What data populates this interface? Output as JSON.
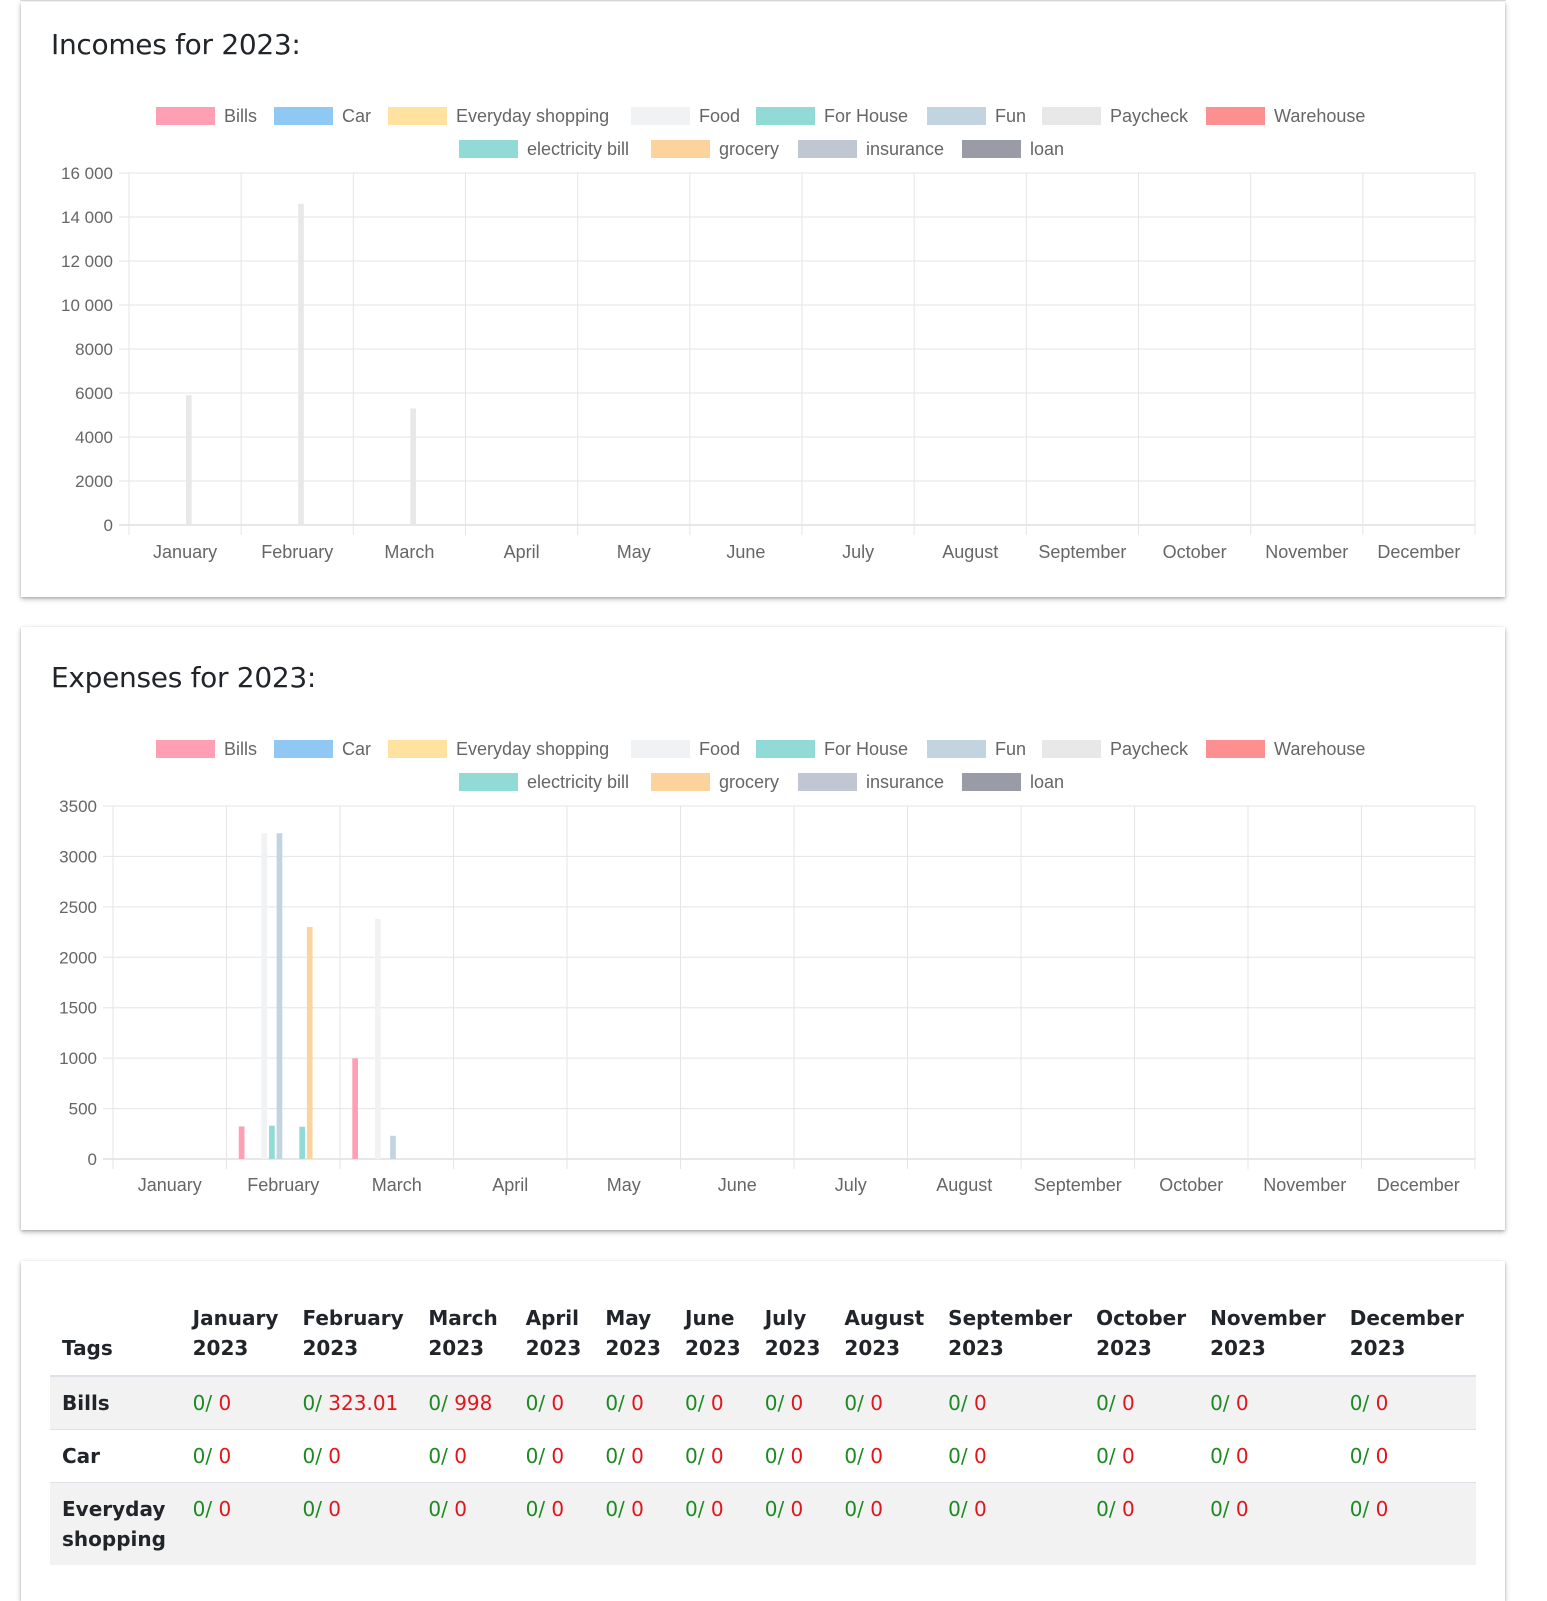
{
  "incomes_card": {
    "title": "Incomes for 2023:"
  },
  "expenses_card": {
    "title": "Expenses for 2023:"
  },
  "legend": [
    {
      "name": "Bills",
      "color": "#ff9fb3"
    },
    {
      "name": "Car",
      "color": "#8ec8f3"
    },
    {
      "name": "Everyday shopping",
      "color": "#ffe2a0"
    },
    {
      "name": "Food",
      "color": "#f1f2f3"
    },
    {
      "name": "For House",
      "color": "#91dad6"
    },
    {
      "name": "Fun",
      "color": "#c2d4e0"
    },
    {
      "name": "Paycheck",
      "color": "#e8e8e8"
    },
    {
      "name": "Warehouse",
      "color": "#fc8f8f"
    },
    {
      "name": "electricity bill",
      "color": "#91dad6"
    },
    {
      "name": "grocery",
      "color": "#fcd39d"
    },
    {
      "name": "insurance",
      "color": "#c0c6d2"
    },
    {
      "name": "loan",
      "color": "#999ca6"
    }
  ],
  "chart_data": [
    {
      "type": "bar",
      "title": "Incomes for 2023:",
      "categories": [
        "January",
        "February",
        "March",
        "April",
        "May",
        "June",
        "July",
        "August",
        "September",
        "October",
        "November",
        "December"
      ],
      "ylim": [
        0,
        16000
      ],
      "yticks": [
        0,
        2000,
        4000,
        6000,
        8000,
        10000,
        12000,
        14000,
        16000
      ],
      "ytick_labels": [
        "0",
        "2000",
        "4000",
        "6000",
        "8000",
        "10 000",
        "12 000",
        "14 000",
        "16 000"
      ],
      "grid": true,
      "legend_position": "top",
      "series": [
        {
          "name": "Bills",
          "values": [
            0,
            0,
            0,
            0,
            0,
            0,
            0,
            0,
            0,
            0,
            0,
            0
          ]
        },
        {
          "name": "Car",
          "values": [
            0,
            0,
            0,
            0,
            0,
            0,
            0,
            0,
            0,
            0,
            0,
            0
          ]
        },
        {
          "name": "Everyday shopping",
          "values": [
            0,
            0,
            0,
            0,
            0,
            0,
            0,
            0,
            0,
            0,
            0,
            0
          ]
        },
        {
          "name": "Food",
          "values": [
            0,
            0,
            0,
            0,
            0,
            0,
            0,
            0,
            0,
            0,
            0,
            0
          ]
        },
        {
          "name": "For House",
          "values": [
            0,
            0,
            0,
            0,
            0,
            0,
            0,
            0,
            0,
            0,
            0,
            0
          ]
        },
        {
          "name": "Fun",
          "values": [
            0,
            0,
            0,
            0,
            0,
            0,
            0,
            0,
            0,
            0,
            0,
            0
          ]
        },
        {
          "name": "Paycheck",
          "values": [
            5900,
            14600,
            5300,
            0,
            0,
            0,
            0,
            0,
            0,
            0,
            0,
            0
          ]
        },
        {
          "name": "Warehouse",
          "values": [
            0,
            0,
            0,
            0,
            0,
            0,
            0,
            0,
            0,
            0,
            0,
            0
          ]
        },
        {
          "name": "electricity bill",
          "values": [
            0,
            0,
            0,
            0,
            0,
            0,
            0,
            0,
            0,
            0,
            0,
            0
          ]
        },
        {
          "name": "grocery",
          "values": [
            0,
            0,
            0,
            0,
            0,
            0,
            0,
            0,
            0,
            0,
            0,
            0
          ]
        },
        {
          "name": "insurance",
          "values": [
            0,
            0,
            0,
            0,
            0,
            0,
            0,
            0,
            0,
            0,
            0,
            0
          ]
        },
        {
          "name": "loan",
          "values": [
            0,
            0,
            0,
            0,
            0,
            0,
            0,
            0,
            0,
            0,
            0,
            0
          ]
        }
      ]
    },
    {
      "type": "bar",
      "title": "Expenses for 2023:",
      "categories": [
        "January",
        "February",
        "March",
        "April",
        "May",
        "June",
        "July",
        "August",
        "September",
        "October",
        "November",
        "December"
      ],
      "ylim": [
        0,
        3500
      ],
      "yticks": [
        0,
        500,
        1000,
        1500,
        2000,
        2500,
        3000,
        3500
      ],
      "ytick_labels": [
        "0",
        "500",
        "1000",
        "1500",
        "2000",
        "2500",
        "3000",
        "3500"
      ],
      "grid": true,
      "legend_position": "top",
      "series": [
        {
          "name": "Bills",
          "values": [
            0,
            323.01,
            998,
            0,
            0,
            0,
            0,
            0,
            0,
            0,
            0,
            0
          ]
        },
        {
          "name": "Car",
          "values": [
            0,
            0,
            0,
            0,
            0,
            0,
            0,
            0,
            0,
            0,
            0,
            0
          ]
        },
        {
          "name": "Everyday shopping",
          "values": [
            0,
            0,
            0,
            0,
            0,
            0,
            0,
            0,
            0,
            0,
            0,
            0
          ]
        },
        {
          "name": "Food",
          "values": [
            0,
            3230,
            2380,
            0,
            0,
            0,
            0,
            0,
            0,
            0,
            0,
            0
          ]
        },
        {
          "name": "For House",
          "values": [
            0,
            330,
            0,
            0,
            0,
            0,
            0,
            0,
            0,
            0,
            0,
            0
          ]
        },
        {
          "name": "Fun",
          "values": [
            0,
            3230,
            230,
            0,
            0,
            0,
            0,
            0,
            0,
            0,
            0,
            0
          ]
        },
        {
          "name": "Paycheck",
          "values": [
            0,
            0,
            0,
            0,
            0,
            0,
            0,
            0,
            0,
            0,
            0,
            0
          ]
        },
        {
          "name": "Warehouse",
          "values": [
            0,
            0,
            0,
            0,
            0,
            0,
            0,
            0,
            0,
            0,
            0,
            0
          ]
        },
        {
          "name": "electricity bill",
          "values": [
            0,
            320,
            0,
            0,
            0,
            0,
            0,
            0,
            0,
            0,
            0,
            0
          ]
        },
        {
          "name": "grocery",
          "values": [
            0,
            2300,
            0,
            0,
            0,
            0,
            0,
            0,
            0,
            0,
            0,
            0
          ]
        },
        {
          "name": "insurance",
          "values": [
            0,
            0,
            0,
            0,
            0,
            0,
            0,
            0,
            0,
            0,
            0,
            0
          ]
        },
        {
          "name": "loan",
          "values": [
            0,
            0,
            0,
            0,
            0,
            0,
            0,
            0,
            0,
            0,
            0,
            0
          ]
        }
      ]
    }
  ],
  "table": {
    "headers": [
      "Tags",
      "January 2023",
      "February 2023",
      "March 2023",
      "April 2023",
      "May 2023",
      "June 2023",
      "July 2023",
      "August 2023",
      "September 2023",
      "October 2023",
      "November 2023",
      "December 2023"
    ],
    "rows": [
      {
        "tag": "Bills",
        "cells": [
          {
            "income": "0/",
            "expense": "0"
          },
          {
            "income": "0/",
            "expense": "323.01"
          },
          {
            "income": "0/",
            "expense": "998"
          },
          {
            "income": "0/",
            "expense": "0"
          },
          {
            "income": "0/",
            "expense": "0"
          },
          {
            "income": "0/",
            "expense": "0"
          },
          {
            "income": "0/",
            "expense": "0"
          },
          {
            "income": "0/",
            "expense": "0"
          },
          {
            "income": "0/",
            "expense": "0"
          },
          {
            "income": "0/",
            "expense": "0"
          },
          {
            "income": "0/",
            "expense": "0"
          },
          {
            "income": "0/",
            "expense": "0"
          }
        ]
      },
      {
        "tag": "Car",
        "cells": [
          {
            "income": "0/",
            "expense": "0"
          },
          {
            "income": "0/",
            "expense": "0"
          },
          {
            "income": "0/",
            "expense": "0"
          },
          {
            "income": "0/",
            "expense": "0"
          },
          {
            "income": "0/",
            "expense": "0"
          },
          {
            "income": "0/",
            "expense": "0"
          },
          {
            "income": "0/",
            "expense": "0"
          },
          {
            "income": "0/",
            "expense": "0"
          },
          {
            "income": "0/",
            "expense": "0"
          },
          {
            "income": "0/",
            "expense": "0"
          },
          {
            "income": "0/",
            "expense": "0"
          },
          {
            "income": "0/",
            "expense": "0"
          }
        ]
      },
      {
        "tag": "Everyday shopping",
        "cells": [
          {
            "income": "0/",
            "expense": "0"
          },
          {
            "income": "0/",
            "expense": "0"
          },
          {
            "income": "0/",
            "expense": "0"
          },
          {
            "income": "0/",
            "expense": "0"
          },
          {
            "income": "0/",
            "expense": "0"
          },
          {
            "income": "0/",
            "expense": "0"
          },
          {
            "income": "0/",
            "expense": "0"
          },
          {
            "income": "0/",
            "expense": "0"
          },
          {
            "income": "0/",
            "expense": "0"
          },
          {
            "income": "0/",
            "expense": "0"
          },
          {
            "income": "0/",
            "expense": "0"
          },
          {
            "income": "0/",
            "expense": "0"
          }
        ]
      }
    ]
  },
  "colors": {
    "income_text": "#1b8a22",
    "expense_text": "#e0161c",
    "grid": "#e5e5e5",
    "axis_text": "#666666"
  }
}
